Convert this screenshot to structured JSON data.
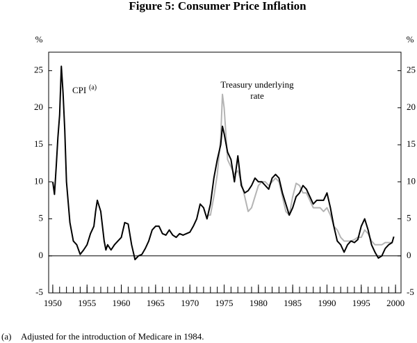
{
  "chart_data": {
    "type": "line",
    "title": "Figure 5: Consumer Price Inflation",
    "y_unit": "%",
    "xlim": [
      1949.4,
      2000.8
    ],
    "ylim": [
      -5,
      27.5
    ],
    "xticks": [
      1950,
      1955,
      1960,
      1965,
      1970,
      1975,
      1980,
      1985,
      1990,
      1995,
      2000
    ],
    "minor_xticks": [
      1950,
      1951,
      1952,
      1953,
      1954,
      1955,
      1956,
      1957,
      1958,
      1959,
      1960,
      1961,
      1962,
      1963,
      1964,
      1965,
      1966,
      1967,
      1968,
      1969,
      1970,
      1971,
      1972,
      1973,
      1974,
      1975,
      1976,
      1977,
      1978,
      1979,
      1980,
      1981,
      1982,
      1983,
      1984,
      1985,
      1986,
      1987,
      1988,
      1989,
      1990,
      1991,
      1992,
      1993,
      1994,
      1995,
      1996,
      1997,
      1998,
      1999,
      2000
    ],
    "yticks": [
      -5,
      0,
      5,
      10,
      15,
      20,
      25
    ],
    "zero_line": true,
    "series": [
      {
        "name": "CPI",
        "color": "#000000",
        "x": [
          1950,
          1950.25,
          1950.5,
          1950.75,
          1951,
          1951.25,
          1951.5,
          1951.75,
          1952,
          1952.5,
          1953,
          1953.5,
          1954,
          1954.5,
          1955,
          1955.5,
          1956,
          1956.25,
          1956.5,
          1957,
          1957.5,
          1957.75,
          1958,
          1958.5,
          1959,
          1959.5,
          1960,
          1960.5,
          1961,
          1961.5,
          1962,
          1962.5,
          1963,
          1963.5,
          1964,
          1964.5,
          1965,
          1965.5,
          1966,
          1966.5,
          1967,
          1967.5,
          1968,
          1968.5,
          1969,
          1969.5,
          1970,
          1970.5,
          1971,
          1971.5,
          1972,
          1972.5,
          1973,
          1973.5,
          1974,
          1974.5,
          1974.75,
          1975,
          1975.5,
          1976,
          1976.5,
          1977,
          1977.5,
          1978,
          1978.5,
          1979,
          1979.5,
          1980,
          1980.5,
          1981,
          1981.5,
          1982,
          1982.5,
          1983,
          1983.5,
          1984,
          1984.5,
          1985,
          1985.5,
          1986,
          1986.5,
          1987,
          1987.5,
          1988,
          1988.5,
          1989,
          1989.5,
          1990,
          1990.5,
          1991,
          1991.5,
          1992,
          1992.5,
          1993,
          1993.5,
          1994,
          1994.5,
          1995,
          1995.5,
          1996,
          1996.5,
          1997,
          1997.5,
          1998,
          1998.5,
          1999,
          1999.5,
          1999.75
        ],
        "values": [
          10,
          8.3,
          12,
          16,
          19,
          25.6,
          22,
          17,
          10,
          4.5,
          2,
          1.5,
          0.2,
          0.8,
          1.5,
          3,
          4,
          6,
          7.5,
          6,
          2,
          0.8,
          1.5,
          0.8,
          1.5,
          2,
          2.5,
          4.5,
          4.3,
          1.5,
          -0.5,
          0,
          0.2,
          1,
          2,
          3.5,
          4,
          4,
          3,
          2.8,
          3.5,
          2.8,
          2.5,
          3,
          2.8,
          3,
          3.2,
          4,
          5,
          7,
          6.5,
          5,
          7,
          10.5,
          13,
          15,
          17.5,
          16.5,
          14,
          13,
          10,
          13.5,
          9.5,
          8.5,
          8.8,
          9.5,
          10.5,
          10,
          10,
          9.5,
          9,
          10.5,
          11,
          10.5,
          8.5,
          7,
          5.5,
          6.5,
          8,
          8.5,
          9.5,
          9,
          8,
          7,
          7.5,
          7.5,
          7.5,
          8.5,
          6.5,
          4,
          2,
          1.5,
          0.5,
          1.5,
          2,
          1.8,
          2.2,
          4,
          5,
          3.5,
          1.5,
          0.5,
          -0.3,
          0,
          1,
          1.5,
          1.8,
          2.6
        ]
      },
      {
        "color": "#b4b4b4",
        "x": [
          1972.5,
          1973,
          1973.5,
          1974,
          1974.5,
          1974.75,
          1975,
          1975.5,
          1976,
          1976.5,
          1977,
          1977.5,
          1978,
          1978.5,
          1979,
          1979.5,
          1980,
          1980.5,
          1981,
          1981.5,
          1982,
          1982.5,
          1983,
          1983.5,
          1984,
          1984.5,
          1985,
          1985.5,
          1986,
          1986.5,
          1987,
          1987.5,
          1988,
          1988.5,
          1989,
          1989.5,
          1990,
          1990.5,
          1991,
          1991.5,
          1992,
          1992.5,
          1993,
          1993.5,
          1994,
          1994.5,
          1995,
          1995.5,
          1996,
          1996.5,
          1997,
          1997.5,
          1998,
          1998.5,
          1999,
          1999.5
        ],
        "values": [
          5.5,
          5.5,
          8,
          11,
          16,
          21.8,
          20,
          13,
          12,
          11,
          11.5,
          10,
          8,
          6,
          6.5,
          8,
          9.5,
          10,
          10,
          9.5,
          10,
          10.5,
          10,
          8,
          6,
          5.5,
          8,
          9.8,
          9.5,
          8.5,
          8.5,
          7.5,
          6.5,
          6.5,
          6.5,
          6,
          6.5,
          5.5,
          4,
          3.5,
          2.5,
          2,
          2,
          2,
          2.2,
          2.5,
          2.5,
          3.5,
          3,
          2,
          1.5,
          1.5,
          1.5,
          1.8,
          1.8,
          1.8
        ]
      }
    ],
    "annotations": [
      "(a)",
      "Treasury underlying",
      "rate"
    ],
    "footnote": {
      "marker": "(a)",
      "text": "Adjusted for the introduction of Medicare in 1984."
    }
  }
}
